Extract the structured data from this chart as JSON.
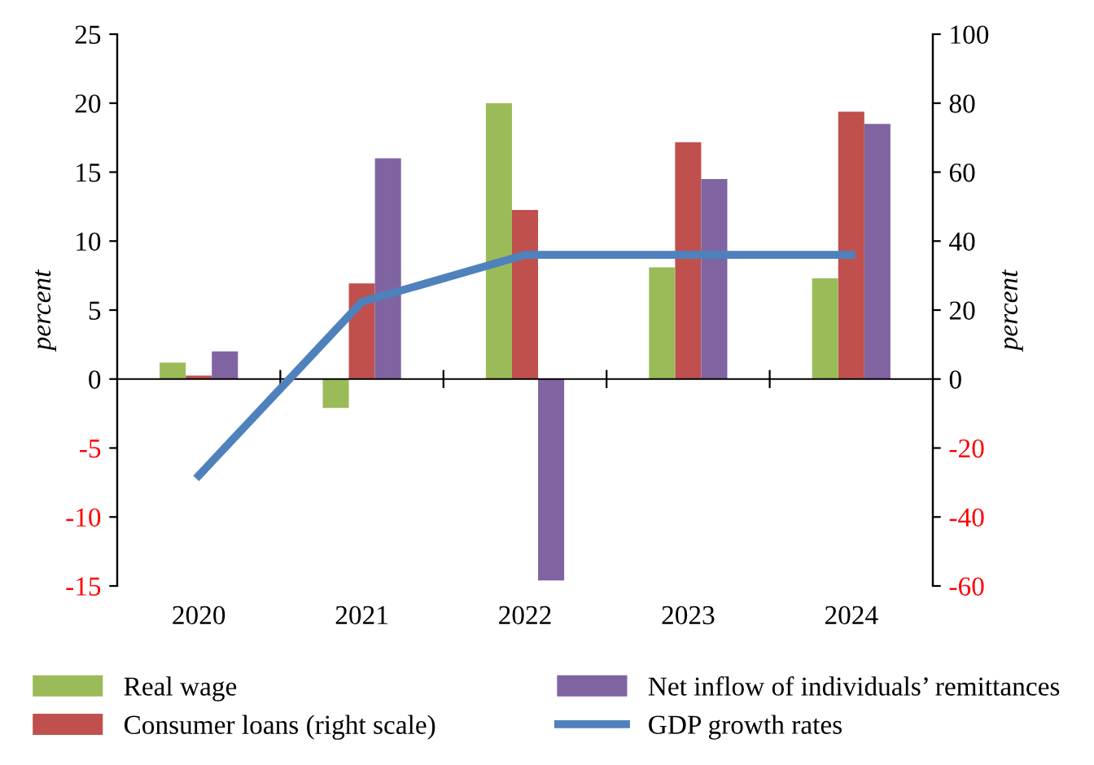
{
  "chart_data": {
    "type": "bar",
    "ylabel": "percent",
    "y2label": "percent",
    "categories": [
      "2020",
      "2021",
      "2022",
      "2023",
      "2024"
    ],
    "series": [
      {
        "name": "Real wage",
        "color": "#9bbb59",
        "values": [
          1.2,
          -2.1,
          20.0,
          8.1,
          7.3
        ]
      },
      {
        "name": "Consumer loans (right scale)",
        "color": "#c0504d",
        "axis": "y2",
        "values": [
          1,
          27.7,
          49,
          68.7,
          77.5
        ]
      },
      {
        "name": "Net inflow of individuals’ remittances",
        "color": "#8064a2",
        "values": [
          2.0,
          16.0,
          -14.6,
          14.5,
          18.5
        ]
      },
      {
        "name": "GDP growth rates",
        "color": "#4f81bd",
        "type": "line",
        "values": [
          -7.0,
          5.6,
          9.0,
          9.0,
          9.0
        ]
      }
    ],
    "ylim": [
      -15,
      25
    ],
    "yticks": [
      -15,
      -10,
      -5,
      0,
      5,
      10,
      15,
      20,
      25
    ],
    "y2lim": [
      -60,
      100
    ],
    "y2ticks": [
      -60,
      -40,
      -20,
      0,
      20,
      40,
      60,
      80,
      100
    ],
    "legend": "bottom",
    "marker": "none",
    "line_style": "solid"
  }
}
